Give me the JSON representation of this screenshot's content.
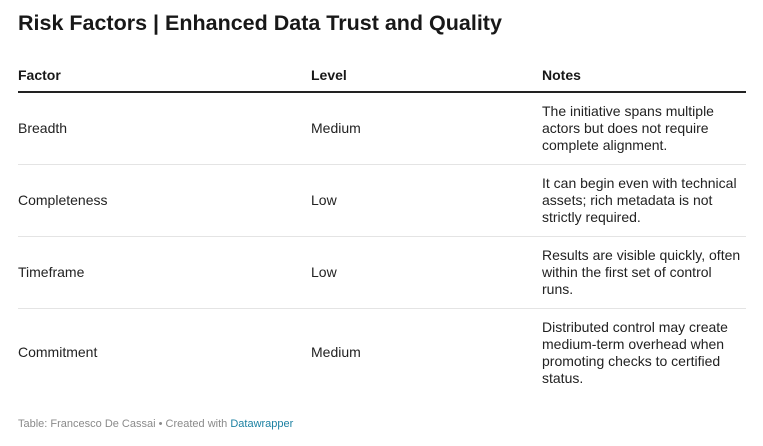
{
  "title": "Risk Factors | Enhanced Data Trust and Quality",
  "table": {
    "headers": [
      "Factor",
      "Level",
      "Notes"
    ],
    "rows": [
      {
        "factor": "Breadth",
        "level": "Medium",
        "notes": "The initiative spans multiple actors but does not require complete alignment."
      },
      {
        "factor": "Completeness",
        "level": "Low",
        "notes": "It can begin even with technical assets; rich metadata is not strictly required."
      },
      {
        "factor": "Timeframe",
        "level": "Low",
        "notes": "Results are visible quickly, often within the first set of control runs."
      },
      {
        "factor": "Commitment",
        "level": "Medium",
        "notes": "Distributed control may create medium-term overhead when promoting checks to certified status."
      }
    ]
  },
  "footer": {
    "prefix": "Table: Francesco De Cassai • Created with ",
    "link_text": "Datawrapper"
  },
  "colors": {
    "text": "#181818",
    "muted": "#8a8a8a",
    "link": "#1d81a2",
    "rule": "#222222",
    "row_divider": "#e4e4e4"
  }
}
